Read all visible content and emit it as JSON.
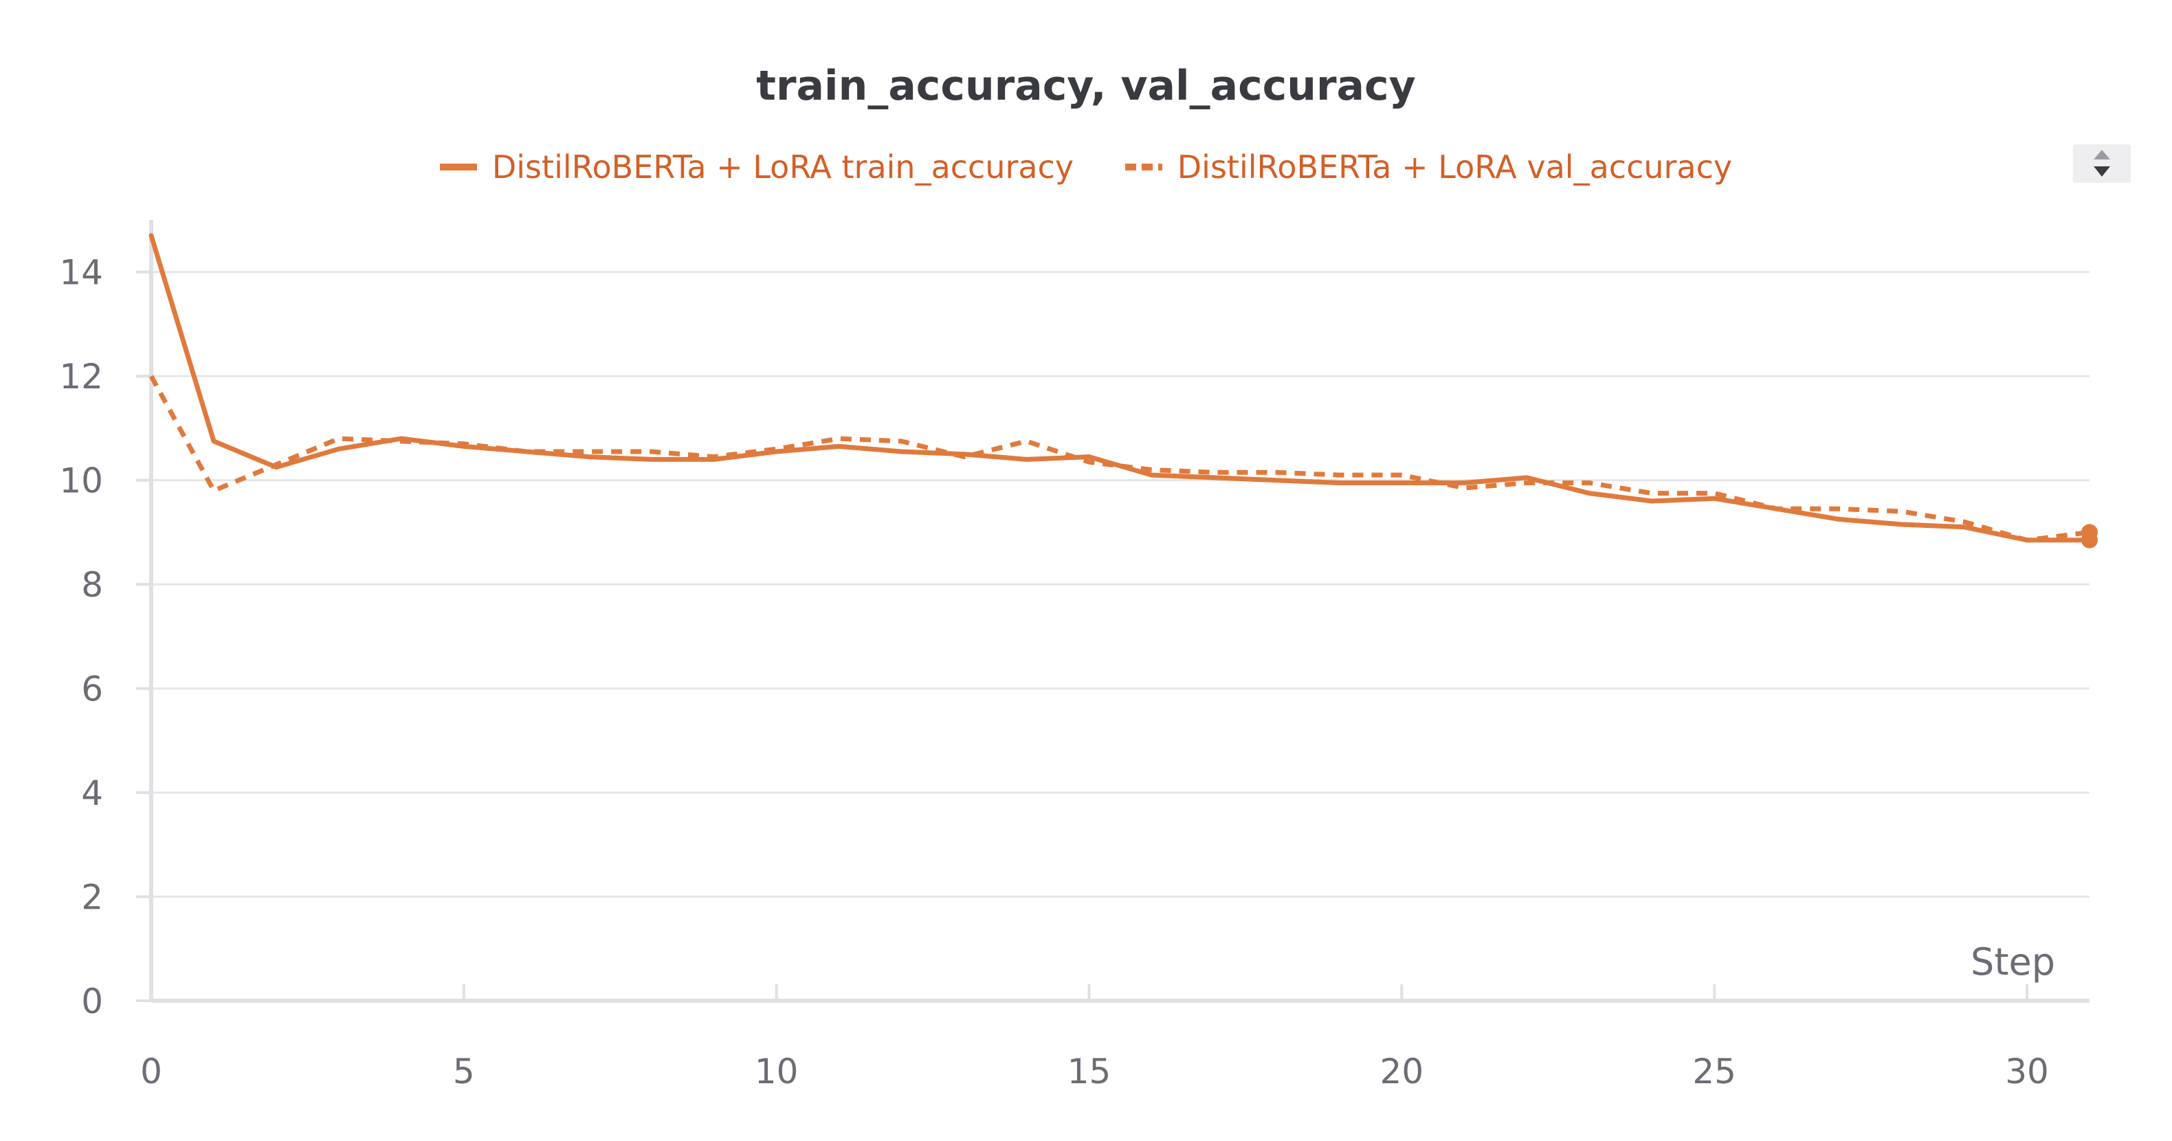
{
  "chart_data": {
    "type": "line",
    "title": "train_accuracy, val_accuracy",
    "xlabel": "Step",
    "ylabel": "",
    "xlim": [
      0,
      31
    ],
    "ylim": [
      0,
      15
    ],
    "xticks": [
      0,
      5,
      10,
      15,
      20,
      25,
      30
    ],
    "yticks": [
      0,
      2,
      4,
      6,
      8,
      10,
      12,
      14
    ],
    "grid": true,
    "legend_position": "top-center",
    "x": [
      0,
      1,
      2,
      3,
      4,
      5,
      6,
      7,
      8,
      9,
      10,
      11,
      12,
      13,
      14,
      15,
      16,
      17,
      18,
      19,
      20,
      21,
      22,
      23,
      24,
      25,
      26,
      27,
      28,
      29,
      30,
      31
    ],
    "series": [
      {
        "name": "DistilRoBERTa + LoRA train_accuracy",
        "style": "solid",
        "color": "#e07a3c",
        "values": [
          14.7,
          10.75,
          10.25,
          10.6,
          10.8,
          10.65,
          10.55,
          10.45,
          10.4,
          10.4,
          10.55,
          10.65,
          10.55,
          10.5,
          10.4,
          10.45,
          10.1,
          10.05,
          10.0,
          9.95,
          9.95,
          9.95,
          10.05,
          9.75,
          9.6,
          9.65,
          9.45,
          9.25,
          9.15,
          9.1,
          8.85,
          8.85
        ]
      },
      {
        "name": "DistilRoBERTa + LoRA val_accuracy",
        "style": "dashed",
        "color": "#e07a3c",
        "values": [
          12.0,
          9.8,
          10.3,
          10.8,
          10.75,
          10.7,
          10.55,
          10.55,
          10.55,
          10.45,
          10.6,
          10.8,
          10.75,
          10.45,
          10.75,
          10.35,
          10.2,
          10.15,
          10.15,
          10.1,
          10.1,
          9.85,
          9.95,
          9.95,
          9.75,
          9.75,
          9.45,
          9.45,
          9.4,
          9.2,
          8.85,
          9.0
        ]
      }
    ]
  }
}
